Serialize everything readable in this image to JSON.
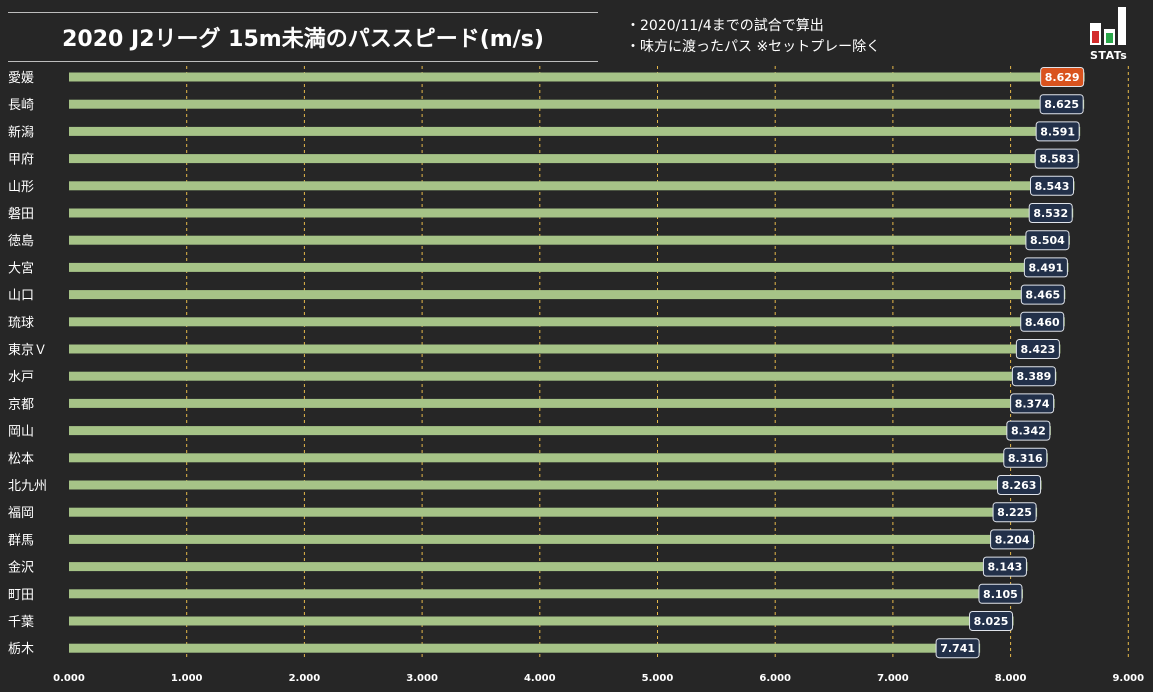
{
  "header": {
    "title": "2020 J2リーグ 15m未満のパススピード(m/s)",
    "note_1": "・2020/11/4までの試合で算出",
    "note_2": "・味方に渡ったパス ※セットプレー除く",
    "logo_text": "STATs"
  },
  "colors": {
    "background": "#262626",
    "bar": "#a6c387",
    "label_box": "#223049",
    "label_box_highlight": "#d9531e",
    "grid": "#e6b94a"
  },
  "chart_data": {
    "type": "bar",
    "orientation": "horizontal",
    "title": "2020 J2リーグ 15m未満のパススピード(m/s)",
    "categories": [
      "愛媛",
      "長崎",
      "新潟",
      "甲府",
      "山形",
      "磐田",
      "徳島",
      "大宮",
      "山口",
      "琉球",
      "東京Ｖ",
      "水戸",
      "京都",
      "岡山",
      "松本",
      "北九州",
      "福岡",
      "群馬",
      "金沢",
      "町田",
      "千葉",
      "栃木"
    ],
    "values": [
      8.629,
      8.625,
      8.591,
      8.583,
      8.543,
      8.532,
      8.504,
      8.491,
      8.465,
      8.46,
      8.423,
      8.389,
      8.374,
      8.342,
      8.316,
      8.263,
      8.225,
      8.204,
      8.143,
      8.105,
      8.025,
      7.741
    ],
    "value_labels": [
      "8.629",
      "8.625",
      "8.591",
      "8.583",
      "8.543",
      "8.532",
      "8.504",
      "8.491",
      "8.465",
      "8.460",
      "8.423",
      "8.389",
      "8.374",
      "8.342",
      "8.316",
      "8.263",
      "8.225",
      "8.204",
      "8.143",
      "8.105",
      "8.025",
      "7.741"
    ],
    "highlight_index": 0,
    "xlim": [
      0,
      9
    ],
    "x_ticks": [
      "0.000",
      "1.000",
      "2.000",
      "3.000",
      "4.000",
      "5.000",
      "6.000",
      "7.000",
      "8.000",
      "9.000"
    ],
    "grid": "vertical dashed"
  }
}
